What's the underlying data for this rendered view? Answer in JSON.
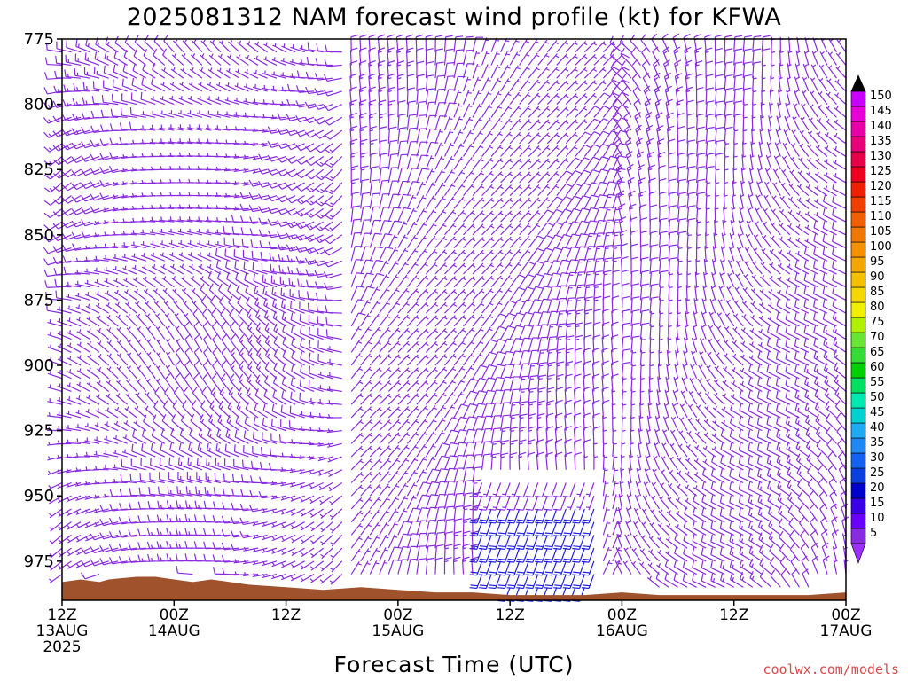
{
  "chart_data": {
    "type": "wind-barb-profile",
    "title": "2025081312 NAM forecast wind profile (kt) for KFWA",
    "xlabel": "Forecast Time (UTC)",
    "ylabel": "",
    "y_axis": {
      "ticks": [
        "775",
        "800",
        "825",
        "850",
        "875",
        "900",
        "925",
        "950",
        "975"
      ],
      "range": [
        775,
        990
      ],
      "inverted": true
    },
    "x_axis": {
      "range_hours": [
        0,
        84
      ],
      "ticks": [
        {
          "hour": 0,
          "line1": "12Z",
          "line2": "13AUG",
          "line3": "2025"
        },
        {
          "hour": 12,
          "line1": "00Z",
          "line2": "14AUG",
          "line3": ""
        },
        {
          "hour": 24,
          "line1": "12Z",
          "line2": "",
          "line3": ""
        },
        {
          "hour": 36,
          "line1": "00Z",
          "line2": "15AUG",
          "line3": ""
        },
        {
          "hour": 48,
          "line1": "12Z",
          "line2": "",
          "line3": ""
        },
        {
          "hour": 60,
          "line1": "00Z",
          "line2": "16AUG",
          "line3": ""
        },
        {
          "hour": 72,
          "line1": "12Z",
          "line2": "",
          "line3": ""
        },
        {
          "hour": 84,
          "line1": "00Z",
          "line2": "17AUG",
          "line3": ""
        }
      ]
    },
    "colorbar": {
      "labels": [
        "5",
        "10",
        "15",
        "20",
        "25",
        "30",
        "35",
        "40",
        "45",
        "50",
        "55",
        "60",
        "65",
        "70",
        "75",
        "80",
        "85",
        "90",
        "95",
        "100",
        "105",
        "110",
        "115",
        "120",
        "125",
        "130",
        "135",
        "140",
        "145",
        "150"
      ],
      "colors": [
        "#8a2be2",
        "#6a00ff",
        "#3a00e8",
        "#0000cd",
        "#0a3fe0",
        "#1463f0",
        "#1e88f5",
        "#1eaaf5",
        "#00d0d0",
        "#00e8b0",
        "#00e060",
        "#00d000",
        "#33dd33",
        "#66e633",
        "#b0f000",
        "#f0f000",
        "#f5d800",
        "#f5c000",
        "#f5a500",
        "#f59000",
        "#f07800",
        "#f06000",
        "#f04000",
        "#f02000",
        "#f00020",
        "#e8004a",
        "#e80078",
        "#e800a8",
        "#e800d8",
        "#c800ff"
      ],
      "top_arrow_color": "#000000",
      "bottom_arrow_color": "#9b30ff"
    },
    "barbs": {
      "levels_mb": [
        780,
        785,
        790,
        795,
        800,
        805,
        810,
        815,
        820,
        825,
        830,
        835,
        840,
        845,
        850,
        855,
        860,
        865,
        870,
        875,
        880,
        885,
        890,
        895,
        900,
        905,
        910,
        915,
        920,
        925,
        930,
        935,
        940,
        945,
        950,
        955,
        960,
        965,
        970,
        975,
        980,
        985
      ],
      "hours": [
        0,
        1,
        2,
        3,
        4,
        5,
        6,
        7,
        8,
        9,
        10,
        11,
        12,
        13,
        14,
        15,
        16,
        17,
        18,
        19,
        20,
        21,
        22,
        23,
        24,
        25,
        26,
        27,
        28,
        29,
        30,
        31,
        32,
        33,
        34,
        35,
        36,
        37,
        38,
        39,
        40,
        41,
        42,
        43,
        44,
        45,
        46,
        47,
        48,
        49,
        50,
        51,
        52,
        53,
        54,
        55,
        56,
        57,
        58,
        59,
        60,
        61,
        62,
        63,
        64,
        65,
        66,
        67,
        68,
        69,
        70,
        71,
        72,
        73,
        74,
        75,
        76,
        77,
        78,
        79,
        80,
        81,
        82,
        83,
        84
      ],
      "typical_speed_kt": "5-15",
      "primary_color": "#8a2be2",
      "strong_color": "#2020e0"
    },
    "terrain_color": "#a0522d",
    "terrain_surface_mb": [
      [
        0,
        983
      ],
      [
        2,
        982
      ],
      [
        4,
        983
      ],
      [
        5,
        982
      ],
      [
        8,
        981
      ],
      [
        10,
        981
      ],
      [
        12,
        982
      ],
      [
        14,
        983
      ],
      [
        16,
        982
      ],
      [
        20,
        984
      ],
      [
        24,
        985
      ],
      [
        28,
        986
      ],
      [
        32,
        985
      ],
      [
        36,
        986
      ],
      [
        40,
        987
      ],
      [
        44,
        987
      ],
      [
        48,
        988
      ],
      [
        52,
        988
      ],
      [
        56,
        988
      ],
      [
        60,
        987
      ],
      [
        64,
        988
      ],
      [
        68,
        988
      ],
      [
        72,
        988
      ],
      [
        76,
        988
      ],
      [
        80,
        988
      ],
      [
        84,
        987
      ]
    ]
  },
  "credit": "coolwx.com/models"
}
